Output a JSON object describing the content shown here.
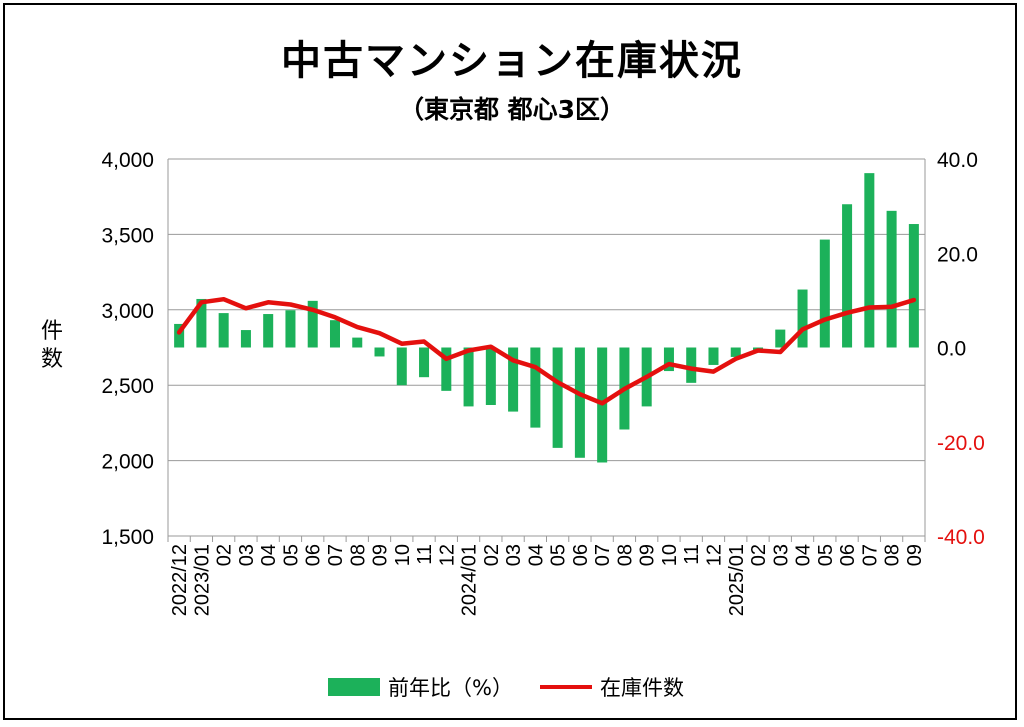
{
  "title": "中古マンション在庫状況",
  "subtitle": "（東京都 都心3区）",
  "chart_data": {
    "type": "bar+line",
    "title": "中古マンション在庫状況",
    "subtitle": "（東京都 都心3区）",
    "ylabel_left": "件数",
    "ylim_left": [
      1500,
      4000
    ],
    "yticks_left": [
      "1,500",
      "2,000",
      "2,500",
      "3,000",
      "3,500",
      "4,000"
    ],
    "ylim_right": [
      -40,
      40
    ],
    "yticks_right": [
      "-40.0",
      "-20.0",
      "0.0",
      "20.0",
      "40.0"
    ],
    "categories": [
      "2022/12",
      "2023/01",
      "02",
      "03",
      "04",
      "05",
      "06",
      "07",
      "08",
      "09",
      "10",
      "11",
      "12",
      "2024/01",
      "02",
      "03",
      "04",
      "05",
      "06",
      "07",
      "08",
      "09",
      "10",
      "11",
      "12",
      "2025/01",
      "02",
      "03",
      "04",
      "05",
      "06",
      "07",
      "08",
      "09"
    ],
    "series": [
      {
        "name": "前年比（%）",
        "type": "bar",
        "axis": "right",
        "color": "#1cb15a",
        "values": [
          5.0,
          10.3,
          7.3,
          3.7,
          7.1,
          7.9,
          9.9,
          5.8,
          2.1,
          -1.9,
          -8.0,
          -6.3,
          -9.2,
          -12.5,
          -12.2,
          -13.6,
          -17.0,
          -21.3,
          -23.4,
          -24.4,
          -17.4,
          -12.5,
          -5.0,
          -7.5,
          -3.7,
          -2.0,
          -0.6,
          3.8,
          12.3,
          22.9,
          30.4,
          37.0,
          29.0,
          26.2
        ]
      },
      {
        "name": "在庫件数",
        "type": "line",
        "axis": "left",
        "color": "#e4100e",
        "values": [
          2850,
          3050,
          3070,
          3010,
          3050,
          3035,
          3000,
          2950,
          2885,
          2845,
          2775,
          2790,
          2675,
          2730,
          2755,
          2665,
          2620,
          2520,
          2440,
          2380,
          2475,
          2555,
          2640,
          2610,
          2590,
          2675,
          2730,
          2720,
          2870,
          2935,
          2980,
          3015,
          3020,
          3065
        ]
      }
    ],
    "legend": [
      "前年比（%）",
      "在庫件数"
    ],
    "legend_position": "bottom-center",
    "grid": true
  },
  "colors": {
    "bar": "#1cb15a",
    "line": "#e4100e",
    "right_axis_negative": "#e4100e"
  }
}
